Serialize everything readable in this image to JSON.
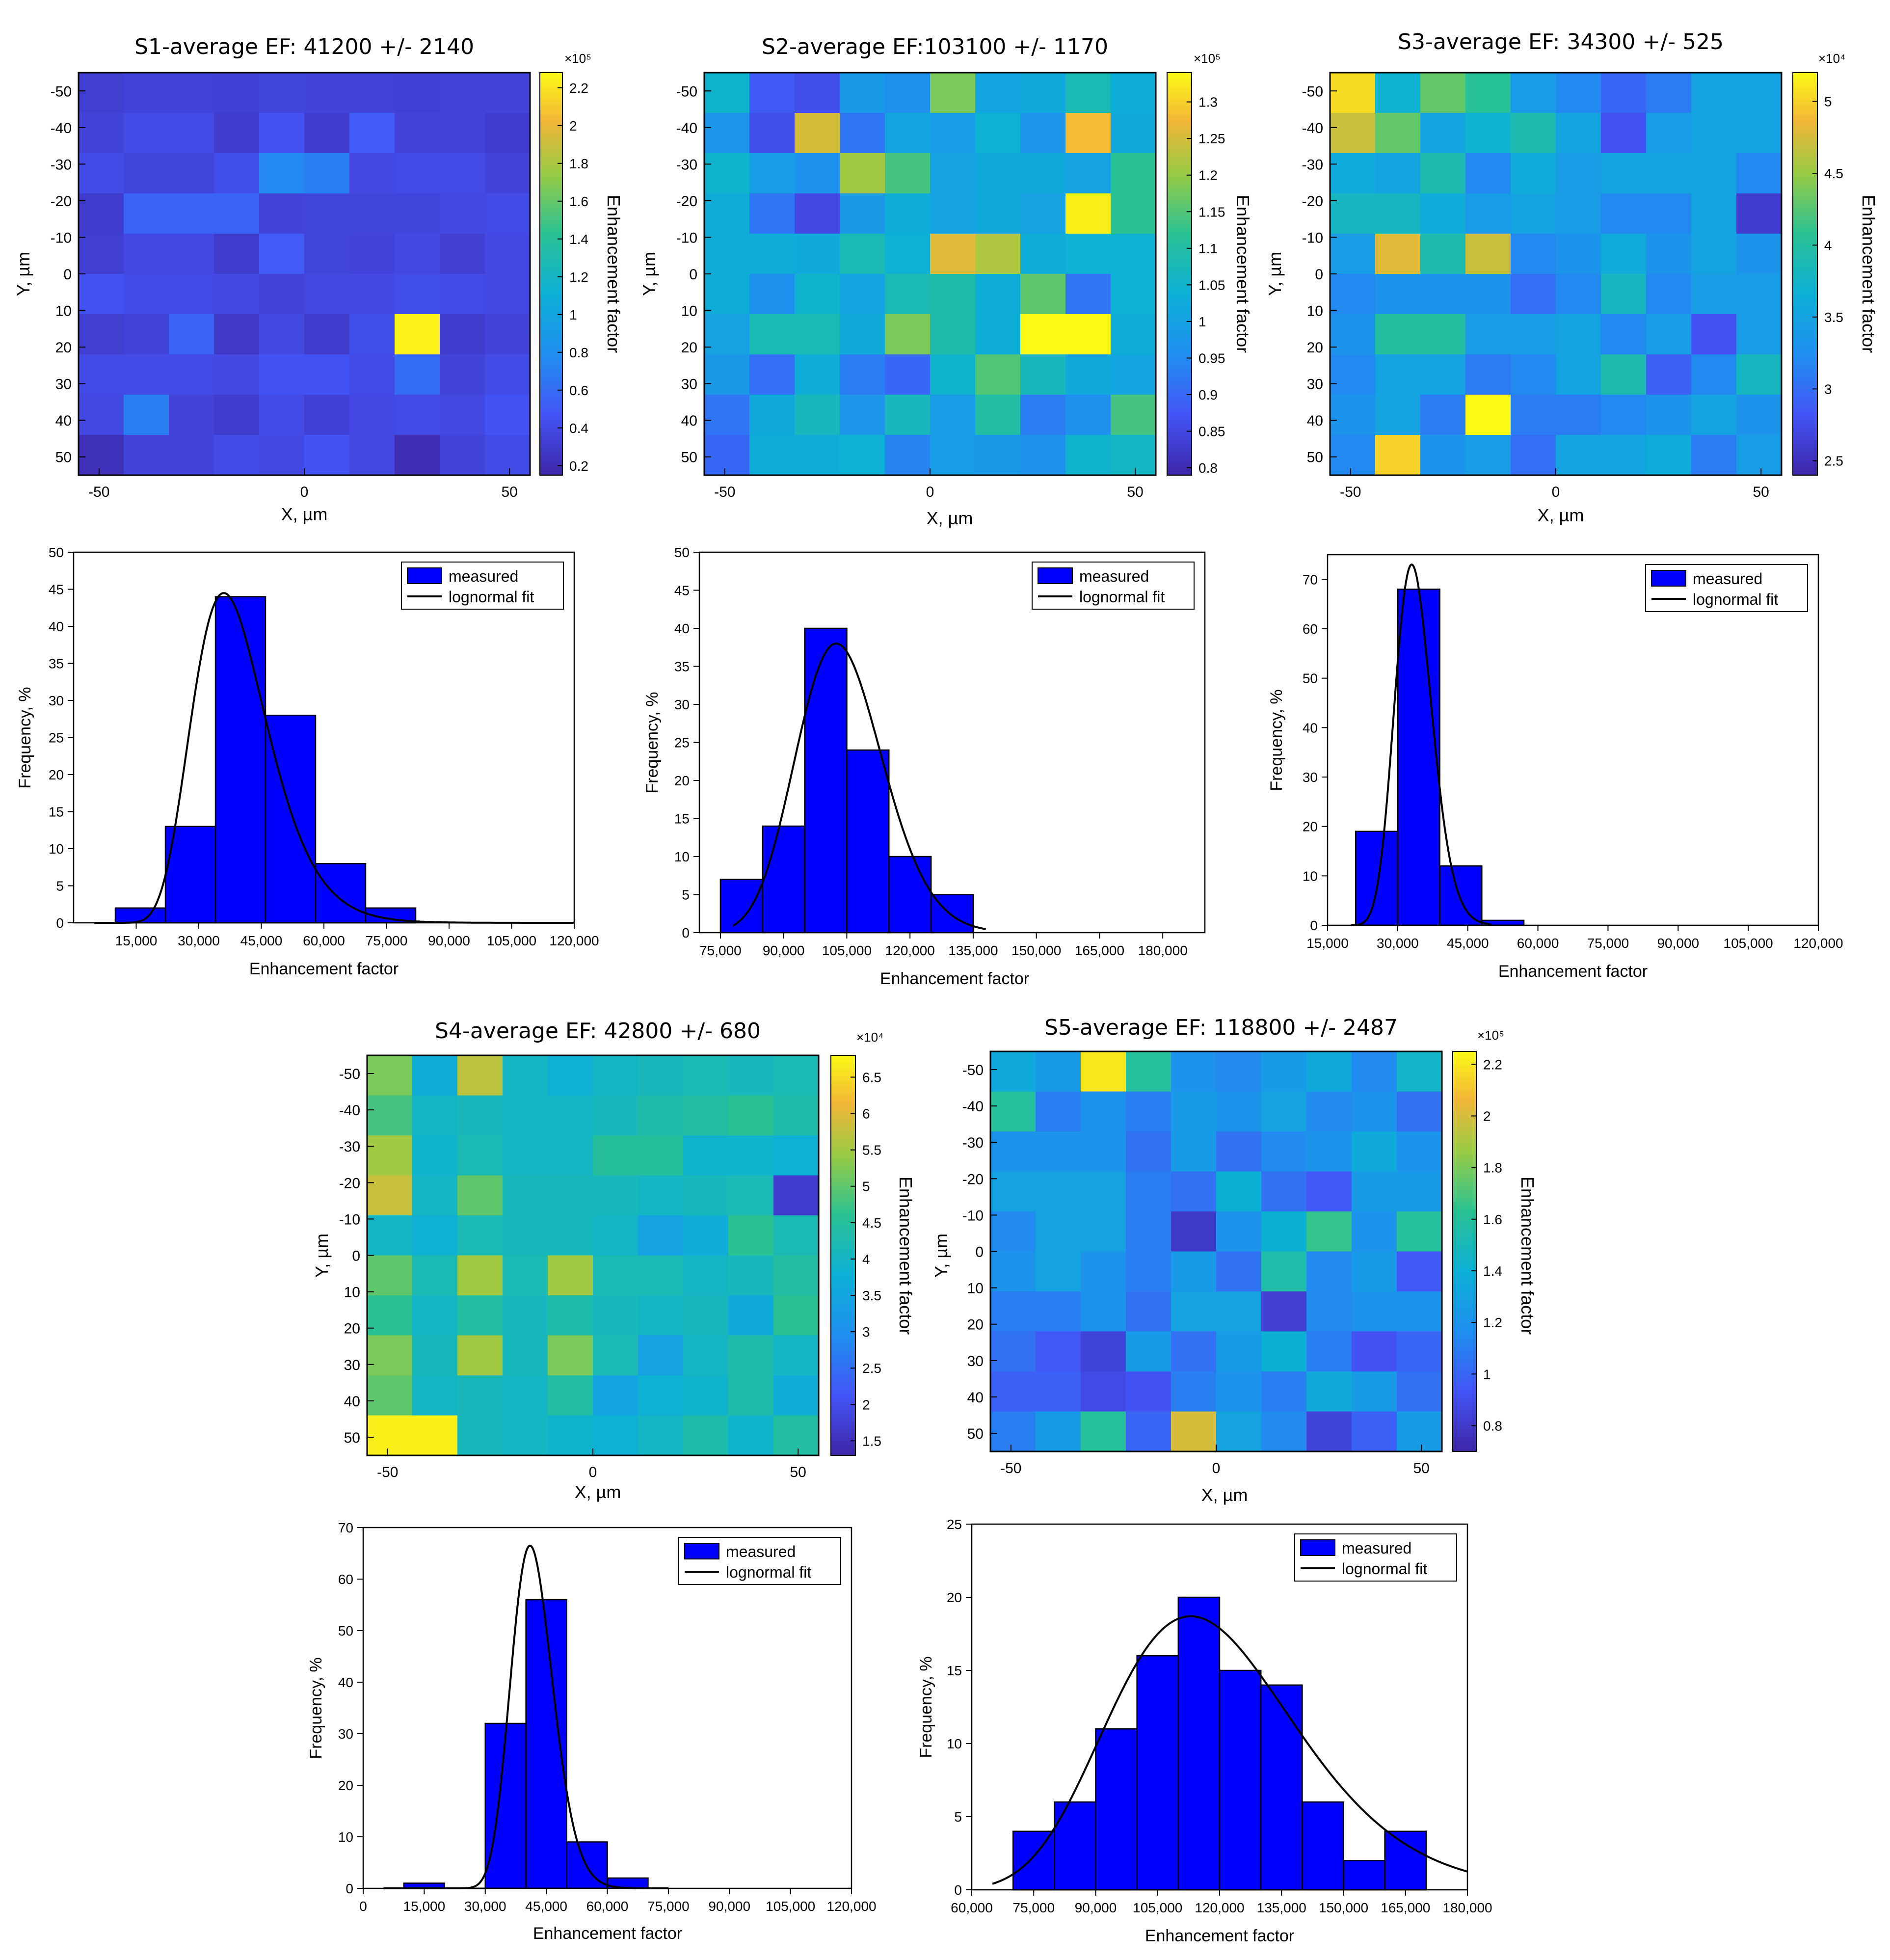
{
  "chart_data": [
    {
      "id": "s1map",
      "type": "heatmap",
      "title": "S1-average EF: 41200 +/- 2140",
      "xlabel": "X, µm",
      "ylabel": "Y, µm",
      "x_ticks": [
        "-50",
        "0",
        "50"
      ],
      "y_ticks": [
        "-50",
        "-40",
        "-30",
        "-20",
        "-10",
        "0",
        "10",
        "20",
        "30",
        "40",
        "50"
      ],
      "colorbar_label": "Enhancement factor",
      "colorbar_exponent": "×10⁵",
      "colorbar_ticks": [
        "0.2",
        "0.4",
        "0.6",
        "0.8",
        "1",
        "1.2",
        "1.4",
        "1.6",
        "1.8",
        "2",
        "2.2"
      ],
      "vmin": 0.15,
      "vmax": 2.28,
      "cells": [
        [
          0.32,
          0.34,
          0.34,
          0.33,
          0.36,
          0.35,
          0.34,
          0.33,
          0.34,
          0.35
        ],
        [
          0.35,
          0.4,
          0.4,
          0.3,
          0.45,
          0.3,
          0.5,
          0.35,
          0.35,
          0.3
        ],
        [
          0.4,
          0.36,
          0.36,
          0.42,
          0.75,
          0.7,
          0.38,
          0.4,
          0.4,
          0.35
        ],
        [
          0.3,
          0.55,
          0.55,
          0.55,
          0.35,
          0.36,
          0.36,
          0.36,
          0.38,
          0.4
        ],
        [
          0.32,
          0.38,
          0.38,
          0.3,
          0.5,
          0.36,
          0.34,
          0.38,
          0.32,
          0.38
        ],
        [
          0.45,
          0.4,
          0.4,
          0.38,
          0.35,
          0.38,
          0.38,
          0.42,
          0.4,
          0.38
        ],
        [
          0.32,
          0.35,
          0.55,
          0.28,
          0.38,
          0.3,
          0.42,
          2.25,
          0.3,
          0.35
        ],
        [
          0.4,
          0.4,
          0.4,
          0.38,
          0.45,
          0.45,
          0.4,
          0.6,
          0.35,
          0.4
        ],
        [
          0.38,
          0.7,
          0.35,
          0.3,
          0.4,
          0.33,
          0.38,
          0.4,
          0.38,
          0.45
        ],
        [
          0.22,
          0.35,
          0.35,
          0.4,
          0.38,
          0.45,
          0.38,
          0.2,
          0.35,
          0.4
        ]
      ]
    },
    {
      "id": "s2map",
      "type": "heatmap",
      "title": "S2-average EF:103100 +/- 1170",
      "xlabel": "X, µm",
      "ylabel": "Y, µm",
      "x_ticks": [
        "-50",
        "0",
        "50"
      ],
      "y_ticks": [
        "-50",
        "-40",
        "-30",
        "-20",
        "-10",
        "0",
        "10",
        "20",
        "30",
        "40",
        "50"
      ],
      "colorbar_label": "Enhancement factor",
      "colorbar_exponent": "×10⁵",
      "colorbar_ticks": [
        "0.8",
        "0.85",
        "0.9",
        "0.95",
        "1",
        "1.05",
        "1.1",
        "1.15",
        "1.2",
        "1.25",
        "1.3"
      ],
      "vmin": 0.79,
      "vmax": 1.34,
      "cells": [
        [
          1.05,
          0.88,
          0.86,
          0.98,
          0.96,
          1.18,
          1.01,
          1.02,
          1.08,
          1.03
        ],
        [
          0.97,
          0.86,
          1.25,
          0.92,
          1.01,
          0.99,
          1.04,
          0.97,
          1.28,
          1.02
        ],
        [
          1.05,
          0.99,
          0.96,
          1.21,
          1.14,
          1.0,
          1.02,
          1.02,
          1.0,
          1.12
        ],
        [
          1.03,
          0.92,
          0.85,
          0.98,
          1.03,
          1.0,
          1.02,
          1.0,
          1.33,
          1.12
        ],
        [
          1.03,
          1.03,
          1.02,
          1.08,
          1.04,
          1.26,
          1.22,
          1.03,
          1.04,
          1.04
        ],
        [
          1.03,
          0.96,
          1.05,
          1.01,
          1.08,
          1.09,
          1.03,
          1.16,
          0.92,
          1.04
        ],
        [
          1.0,
          1.08,
          1.08,
          1.02,
          1.18,
          1.09,
          1.03,
          1.34,
          1.34,
          1.03
        ],
        [
          0.98,
          0.91,
          1.03,
          0.93,
          0.9,
          1.05,
          1.15,
          1.07,
          1.02,
          1.01
        ],
        [
          0.92,
          1.02,
          1.07,
          0.97,
          1.07,
          0.99,
          1.1,
          0.93,
          0.96,
          1.14
        ],
        [
          0.9,
          1.03,
          1.03,
          1.04,
          0.94,
          0.99,
          0.98,
          0.96,
          1.05,
          1.06
        ]
      ]
    },
    {
      "id": "s3map",
      "type": "heatmap",
      "title": "S3-average EF: 34300 +/- 525",
      "xlabel": "X, µm",
      "ylabel": "Y, µm",
      "x_ticks": [
        "-50",
        "0",
        "50"
      ],
      "y_ticks": [
        "-50",
        "-40",
        "-30",
        "-20",
        "-10",
        "0",
        "10",
        "20",
        "30",
        "40",
        "50"
      ],
      "colorbar_label": "Enhancement factor",
      "colorbar_exponent": "×10⁴",
      "colorbar_ticks": [
        "2.5",
        "3",
        "3.5",
        "4",
        "4.5",
        "5"
      ],
      "vmin": 2.4,
      "vmax": 5.2,
      "cells": [
        [
          5.05,
          3.7,
          4.3,
          4.05,
          3.4,
          3.2,
          2.95,
          3.1,
          3.5,
          3.5
        ],
        [
          4.7,
          4.3,
          3.5,
          3.7,
          3.9,
          3.5,
          2.8,
          3.4,
          3.5,
          3.5
        ],
        [
          3.6,
          3.5,
          3.9,
          3.2,
          3.6,
          3.4,
          3.5,
          3.5,
          3.5,
          3.2
        ],
        [
          3.8,
          3.8,
          3.6,
          3.4,
          3.5,
          3.4,
          3.2,
          3.2,
          3.5,
          2.6
        ],
        [
          3.4,
          4.8,
          3.9,
          4.7,
          3.2,
          3.3,
          3.6,
          3.3,
          3.5,
          3.3
        ],
        [
          3.2,
          3.3,
          3.3,
          3.3,
          3.0,
          3.2,
          3.8,
          3.2,
          3.4,
          3.4
        ],
        [
          3.3,
          4.0,
          4.0,
          3.4,
          3.4,
          3.5,
          3.2,
          3.4,
          2.8,
          3.4
        ],
        [
          3.2,
          3.5,
          3.5,
          3.1,
          3.2,
          3.5,
          3.9,
          2.9,
          3.2,
          3.8
        ],
        [
          3.3,
          3.5,
          3.1,
          5.2,
          3.1,
          3.1,
          3.2,
          3.3,
          3.5,
          3.3
        ],
        [
          3.2,
          5.0,
          3.3,
          3.4,
          3.0,
          3.5,
          3.5,
          3.6,
          3.1,
          3.4
        ]
      ]
    },
    {
      "id": "s4map",
      "type": "heatmap",
      "title": "S4-average EF: 42800 +/- 680",
      "xlabel": "X, µm",
      "ylabel": "Y, µm",
      "x_ticks": [
        "-50",
        "0",
        "50"
      ],
      "y_ticks": [
        "-50",
        "-40",
        "-30",
        "-20",
        "-10",
        "0",
        "10",
        "20",
        "30",
        "40",
        "50"
      ],
      "colorbar_label": "Enhancement factor",
      "colorbar_exponent": "×10⁴",
      "colorbar_ticks": [
        "1.5",
        "2",
        "2.5",
        "3",
        "3.5",
        "4",
        "4.5",
        "5",
        "5.5",
        "6",
        "6.5"
      ],
      "vmin": 1.3,
      "vmax": 6.8,
      "cells": [
        [
          5.2,
          3.7,
          5.7,
          4.0,
          3.8,
          4.0,
          4.1,
          4.2,
          4.1,
          4.2
        ],
        [
          4.8,
          4.0,
          4.1,
          4.0,
          4.0,
          4.1,
          4.3,
          4.4,
          4.6,
          4.3
        ],
        [
          5.5,
          3.9,
          4.2,
          4.0,
          4.0,
          4.5,
          4.5,
          3.9,
          3.9,
          3.8
        ],
        [
          5.8,
          4.0,
          5.0,
          4.1,
          4.1,
          4.1,
          4.0,
          4.1,
          4.2,
          1.7
        ],
        [
          4.0,
          3.8,
          4.2,
          4.1,
          4.1,
          4.0,
          3.4,
          3.7,
          4.6,
          4.2
        ],
        [
          5.0,
          4.2,
          5.5,
          4.2,
          5.5,
          4.2,
          4.2,
          4.0,
          4.1,
          4.4
        ],
        [
          4.6,
          4.0,
          4.4,
          4.1,
          4.3,
          4.1,
          4.0,
          4.1,
          3.6,
          4.6
        ],
        [
          5.2,
          4.1,
          5.5,
          4.1,
          5.2,
          4.2,
          3.4,
          4.0,
          4.3,
          4.0
        ],
        [
          5.0,
          4.0,
          4.1,
          4.0,
          4.4,
          3.5,
          3.8,
          3.9,
          4.3,
          3.7
        ],
        [
          6.7,
          6.7,
          4.1,
          4.0,
          3.9,
          3.8,
          4.0,
          4.3,
          3.9,
          4.4
        ]
      ]
    },
    {
      "id": "s5map",
      "type": "heatmap",
      "title": "S5-average EF: 118800 +/- 2487",
      "xlabel": "X, µm",
      "ylabel": "Y, µm",
      "x_ticks": [
        "-50",
        "0",
        "50"
      ],
      "y_ticks": [
        "-50",
        "-40",
        "-30",
        "-20",
        "-10",
        "0",
        "10",
        "20",
        "30",
        "40",
        "50"
      ],
      "colorbar_label": "Enhancement factor",
      "colorbar_exponent": "×10⁵",
      "colorbar_ticks": [
        "0.8",
        "1",
        "1.2",
        "1.4",
        "1.6",
        "1.8",
        "2",
        "2.2"
      ],
      "vmin": 0.7,
      "vmax": 2.25,
      "cells": [
        [
          1.35,
          1.25,
          2.2,
          1.6,
          1.2,
          1.15,
          1.25,
          1.35,
          1.15,
          1.45
        ],
        [
          1.6,
          1.1,
          1.2,
          1.1,
          1.25,
          1.2,
          1.3,
          1.15,
          1.2,
          1.05
        ],
        [
          1.2,
          1.2,
          1.2,
          1.05,
          1.25,
          1.05,
          1.15,
          1.2,
          1.35,
          1.2
        ],
        [
          1.3,
          1.3,
          1.3,
          1.1,
          1.05,
          1.4,
          1.05,
          0.95,
          1.25,
          1.25
        ],
        [
          1.15,
          1.3,
          1.3,
          1.1,
          0.8,
          1.2,
          1.4,
          1.65,
          1.2,
          1.6
        ],
        [
          1.2,
          1.3,
          1.2,
          1.1,
          1.25,
          1.05,
          1.55,
          1.15,
          1.25,
          0.95
        ],
        [
          1.1,
          1.1,
          1.2,
          1.05,
          1.3,
          1.3,
          0.82,
          1.15,
          1.2,
          1.2
        ],
        [
          1.05,
          0.95,
          0.85,
          1.25,
          1.05,
          1.25,
          1.4,
          1.1,
          0.92,
          1.0
        ],
        [
          0.98,
          0.98,
          0.88,
          0.92,
          1.1,
          1.2,
          1.1,
          1.35,
          1.25,
          1.05
        ],
        [
          1.1,
          1.25,
          1.6,
          1.0,
          2.0,
          1.3,
          1.15,
          0.85,
          0.98,
          1.25
        ]
      ]
    },
    {
      "id": "s1hist",
      "type": "bar",
      "xlabel": "Enhancement factor",
      "ylabel": "Frequency, %",
      "xlim": [
        0,
        120000
      ],
      "ylim": [
        0,
        50
      ],
      "x_ticks": [
        "15,000",
        "30,000",
        "45,000",
        "60,000",
        "75,000",
        "90,000",
        "105,000",
        "120,000"
      ],
      "y_ticks": [
        "0",
        "5",
        "10",
        "15",
        "20",
        "25",
        "30",
        "35",
        "40",
        "45",
        "50"
      ],
      "legend": [
        "measured",
        "lognormal fit"
      ],
      "legend_position": "top-right",
      "bins": [
        [
          5000,
          10000,
          0
        ],
        [
          10000,
          22000,
          2
        ],
        [
          22000,
          34000,
          13
        ],
        [
          34000,
          46000,
          44
        ],
        [
          46000,
          58000,
          28
        ],
        [
          58000,
          70000,
          8
        ],
        [
          70000,
          82000,
          2
        ]
      ],
      "fit": {
        "x_start": 5000,
        "x_end": 120000,
        "peak_x": 36000,
        "peak_y": 44.5,
        "sigma": 0.25
      }
    },
    {
      "id": "s2hist",
      "type": "bar",
      "xlabel": "Enhancement factor",
      "ylabel": "Frequency, %",
      "xlim": [
        70000,
        190000
      ],
      "ylim": [
        0,
        50
      ],
      "x_ticks": [
        "75,000",
        "90,000",
        "105,000",
        "120,000",
        "135,000",
        "150,000",
        "165,000",
        "180,000"
      ],
      "y_ticks": [
        "0",
        "5",
        "10",
        "15",
        "20",
        "25",
        "30",
        "35",
        "40",
        "45",
        "50"
      ],
      "legend": [
        "measured",
        "lognormal fit"
      ],
      "legend_position": "top-right",
      "bins": [
        [
          75000,
          85000,
          7
        ],
        [
          85000,
          95000,
          14
        ],
        [
          95000,
          105000,
          40
        ],
        [
          105000,
          115000,
          24
        ],
        [
          115000,
          125000,
          10
        ],
        [
          125000,
          135000,
          5
        ]
      ],
      "fit": {
        "x_start": 78000,
        "x_end": 138000,
        "peak_x": 102500,
        "peak_y": 38,
        "sigma": 0.1
      }
    },
    {
      "id": "s3hist",
      "type": "bar",
      "xlabel": "Enhancement factor",
      "ylabel": "Frequency, %",
      "xlim": [
        15000,
        120000
      ],
      "ylim": [
        0,
        75
      ],
      "x_ticks": [
        "15,000",
        "30,000",
        "45,000",
        "60,000",
        "75,000",
        "90,000",
        "105,000",
        "120,000"
      ],
      "y_ticks": [
        "0",
        "10",
        "20",
        "30",
        "40",
        "50",
        "60",
        "70"
      ],
      "legend": [
        "measured",
        "lognormal fit"
      ],
      "legend_position": "top-right",
      "bins": [
        [
          21000,
          30000,
          19
        ],
        [
          30000,
          39000,
          68
        ],
        [
          39000,
          48000,
          12
        ],
        [
          48000,
          57000,
          1
        ]
      ],
      "fit": {
        "x_start": 20000,
        "x_end": 50000,
        "peak_x": 33000,
        "peak_y": 73,
        "sigma": 0.12
      }
    },
    {
      "id": "s4hist",
      "type": "bar",
      "xlabel": "Enhancement factor",
      "ylabel": "Frequency, %",
      "xlim": [
        0,
        120000
      ],
      "ylim": [
        0,
        70
      ],
      "x_ticks": [
        "0",
        "15,000",
        "30,000",
        "45,000",
        "60,000",
        "75,000",
        "90,000",
        "105,000",
        "120,000"
      ],
      "y_ticks": [
        "0",
        "10",
        "20",
        "30",
        "40",
        "50",
        "60",
        "70"
      ],
      "legend": [
        "measured",
        "lognormal fit"
      ],
      "legend_position": "top-right",
      "bins": [
        [
          5000,
          10000,
          0
        ],
        [
          10000,
          20000,
          1
        ],
        [
          20000,
          30000,
          0
        ],
        [
          30000,
          40000,
          32
        ],
        [
          40000,
          50000,
          56
        ],
        [
          50000,
          60000,
          9
        ],
        [
          60000,
          70000,
          2
        ],
        [
          70000,
          75000,
          0
        ]
      ],
      "fit": {
        "x_start": 5000,
        "x_end": 75000,
        "peak_x": 41000,
        "peak_y": 66.5,
        "sigma": 0.125
      }
    },
    {
      "id": "s5hist",
      "type": "bar",
      "xlabel": "Enhancement factor",
      "ylabel": "Frequency, %",
      "xlim": [
        60000,
        180000
      ],
      "ylim": [
        0,
        25
      ],
      "x_ticks": [
        "60,000",
        "75,000",
        "90,000",
        "105,000",
        "120,000",
        "135,000",
        "150,000",
        "165,000",
        "180,000"
      ],
      "y_ticks": [
        "0",
        "5",
        "10",
        "15",
        "20",
        "25"
      ],
      "legend": [
        "measured",
        "lognormal fit"
      ],
      "legend_position": "top-right",
      "bins": [
        [
          70000,
          80000,
          4
        ],
        [
          80000,
          90000,
          6
        ],
        [
          90000,
          100000,
          11
        ],
        [
          100000,
          110000,
          16
        ],
        [
          110000,
          120000,
          20
        ],
        [
          120000,
          130000,
          15
        ],
        [
          130000,
          140000,
          14
        ],
        [
          140000,
          150000,
          6
        ],
        [
          150000,
          160000,
          2
        ],
        [
          160000,
          170000,
          4
        ]
      ],
      "fit": {
        "x_start": 65000,
        "x_end": 180000,
        "peak_x": 113000,
        "peak_y": 18.7,
        "sigma": 0.2
      }
    }
  ]
}
